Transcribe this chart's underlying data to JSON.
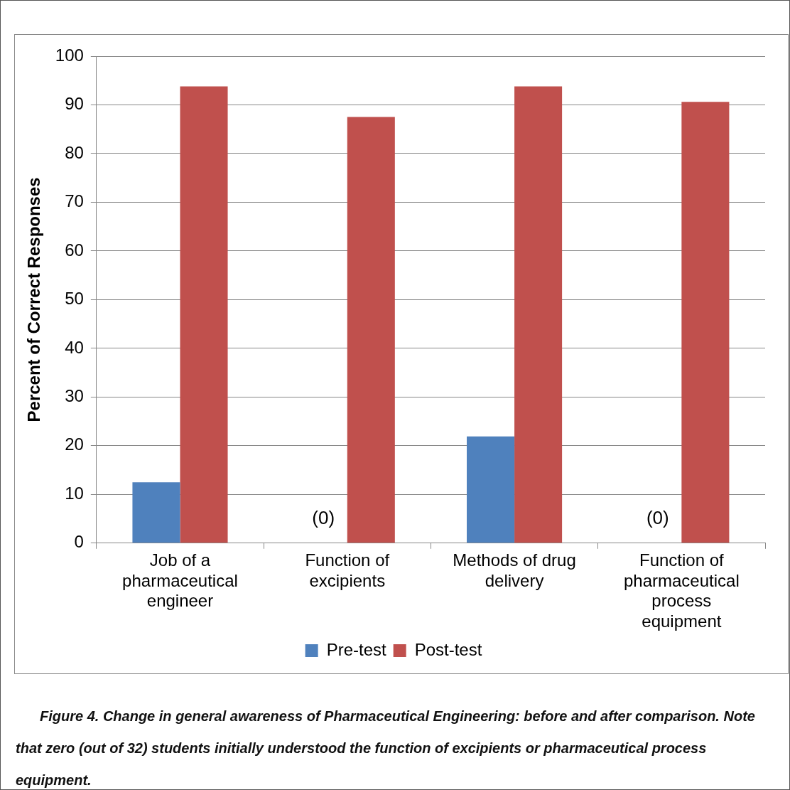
{
  "chart_data": {
    "type": "bar",
    "ylabel": "Percent of Correct Responses",
    "categories": [
      "Job of a pharmaceutical engineer",
      "Function of excipients",
      "Methods of drug delivery",
      "Function of pharmaceutical process equipment"
    ],
    "series": [
      {
        "name": "Pre-test",
        "color": "#4f81bd",
        "values": [
          12.5,
          0,
          21.9,
          0
        ]
      },
      {
        "name": "Post-test",
        "color": "#c0504d",
        "values": [
          93.8,
          87.5,
          93.8,
          90.6
        ]
      }
    ],
    "ylim": [
      0,
      100
    ],
    "yticks": [
      0,
      10,
      20,
      30,
      40,
      50,
      60,
      70,
      80,
      90,
      100
    ],
    "grid": "y",
    "legend": "bottom",
    "annotations": [
      {
        "text": "(0)",
        "x": "Function of excipients",
        "y": 5
      },
      {
        "text": "(0)",
        "x": "Function of pharmaceutical process equipment",
        "y": 5
      },
      "Figure 4. Change in general awareness of Pharmaceutical Engineering:  before and after comparison.  Note that zero (out of 32) students initially understood the function of excipients or pharmaceutical process equipment."
    ]
  }
}
